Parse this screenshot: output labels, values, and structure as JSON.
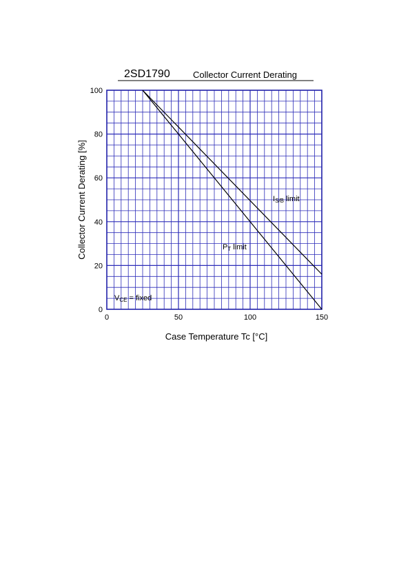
{
  "header": {
    "part_number": "2SD1790",
    "title": "Collector Current Derating"
  },
  "chart_data": {
    "type": "line",
    "title": "Collector Current Derating",
    "xlabel": "Case Temperature  Tc  [°C]",
    "ylabel": "Collector Current Derating  [%]",
    "xlim": [
      0,
      150
    ],
    "ylim": [
      0,
      100
    ],
    "x_ticks": [
      "0",
      "50",
      "100",
      "150"
    ],
    "y_ticks": [
      "0",
      "20",
      "40",
      "60",
      "80",
      "100"
    ],
    "grid": true,
    "series": [
      {
        "name": "IS/B limit",
        "x": [
          25,
          150
        ],
        "y": [
          100,
          16
        ]
      },
      {
        "name": "PT limit",
        "x": [
          25,
          150
        ],
        "y": [
          100,
          0
        ]
      }
    ],
    "annotations": {
      "isb_main": "I",
      "isb_sub": "S/B",
      "isb_tail": " limit",
      "pt_main": "P",
      "pt_sub": "T",
      "pt_tail": " limit",
      "vce_main": "V",
      "vce_sub": "CE",
      "vce_tail": " = fixed"
    },
    "colors": {
      "grid": "#2b2bb8",
      "frame": "#2020a8",
      "curve": "#000000"
    }
  }
}
